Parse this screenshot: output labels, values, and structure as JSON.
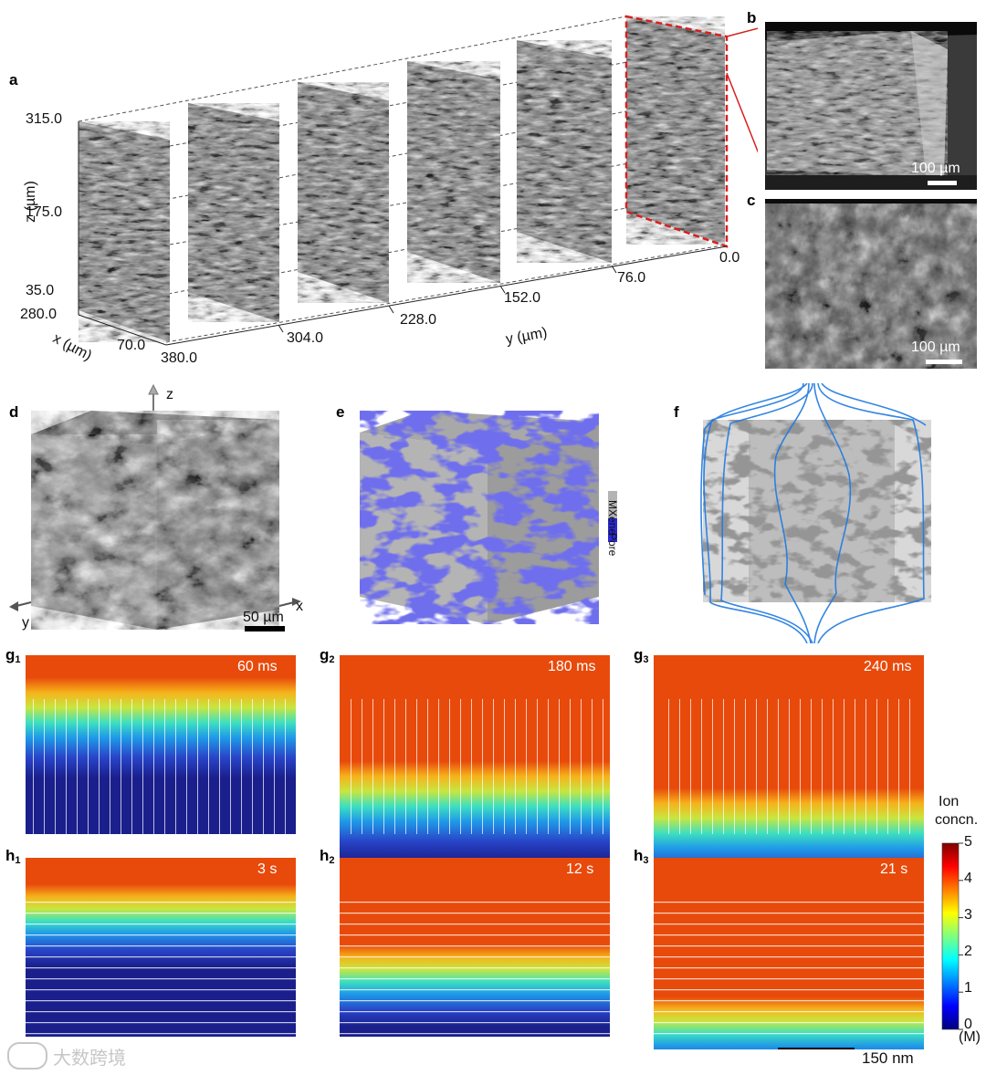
{
  "panel_labels": {
    "a": "a",
    "b": "b",
    "c": "c",
    "d": "d",
    "e": "e",
    "f": "f",
    "g1": "g",
    "g1_sub": "1",
    "g2": "g",
    "g2_sub": "2",
    "g3": "g",
    "g3_sub": "3",
    "h1": "h",
    "h1_sub": "1",
    "h2": "h",
    "h2_sub": "2",
    "h3": "h",
    "h3_sub": "3"
  },
  "panel_a": {
    "z_axis_label": "z (µm)",
    "z_ticks": [
      "315.0",
      "175.0",
      "35.0"
    ],
    "x_axis_label": "x (µm)",
    "x_ticks": [
      "280.0",
      "70.0"
    ],
    "y_axis_label": "y (µm)",
    "y_ticks": [
      "380.0",
      "304.0",
      "228.0",
      "152.0",
      "76.0",
      "0.0"
    ]
  },
  "panel_b": {
    "scale_bar": "100 µm"
  },
  "panel_c": {
    "scale_bar": "100 µm"
  },
  "panel_d": {
    "axis_z": "z",
    "axis_x": "x",
    "axis_y": "y",
    "scale_bar": "50 µm"
  },
  "panel_e": {
    "legend": [
      {
        "label": "MXene",
        "color": "#b4b4b4"
      },
      {
        "label": "Pore",
        "color": "#2a2ad8"
      }
    ]
  },
  "panel_g": {
    "times": [
      "60 ms",
      "180 ms",
      "240 ms"
    ],
    "front_fraction": [
      0.1,
      0.72,
      0.92
    ]
  },
  "panel_h": {
    "times": [
      "3 s",
      "12 s",
      "21 s"
    ],
    "fill_fraction": [
      0.12,
      0.55,
      0.92
    ]
  },
  "colorbar": {
    "title_line1": "Ion",
    "title_line2": "concn.",
    "ticks": [
      "5",
      "4",
      "3",
      "2",
      "1",
      "0"
    ],
    "unit": "(M)",
    "min": 0,
    "max": 5
  },
  "scale_bar_sim": "150 nm",
  "watermark": "大数跨境",
  "colors": {
    "jet_high": "#e84a0c",
    "jet_low": "#1a1f8c",
    "dashed_red": "#d62020"
  }
}
